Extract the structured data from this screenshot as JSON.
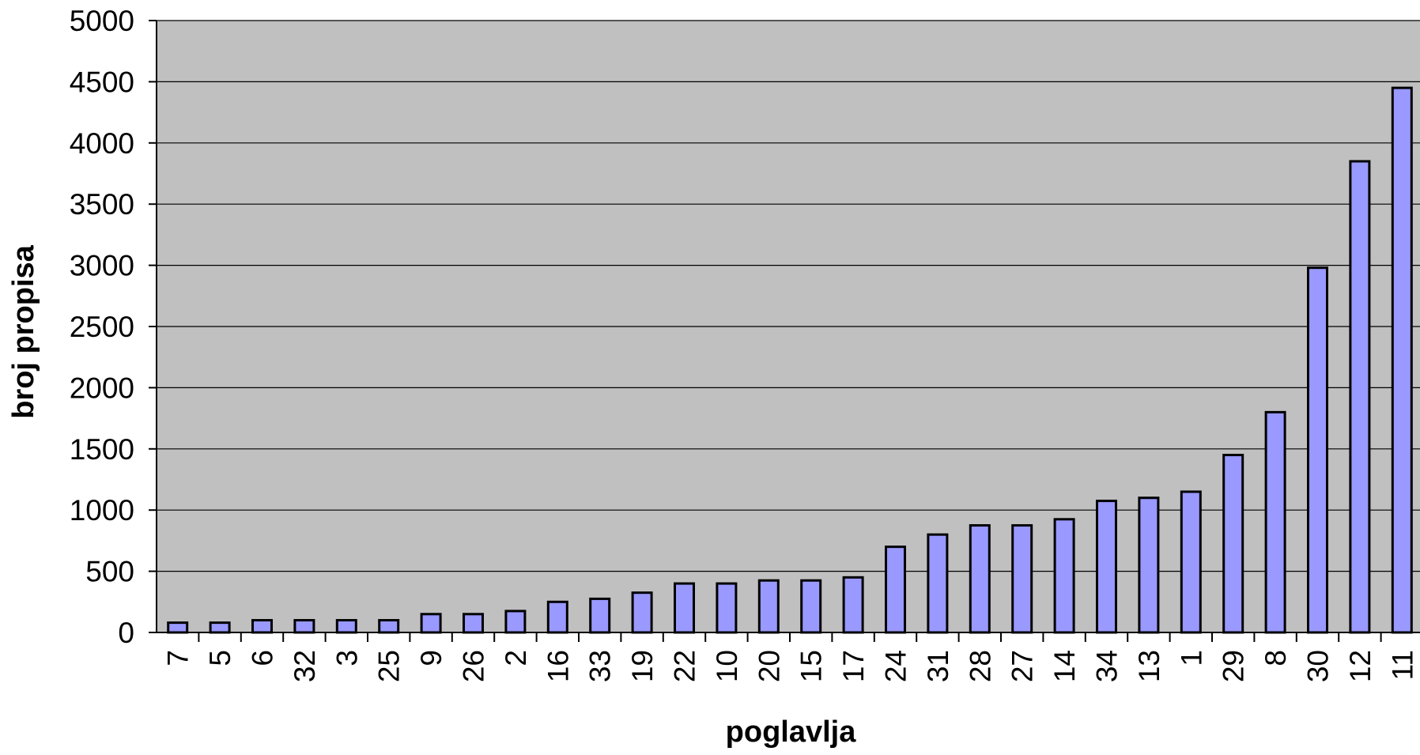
{
  "chart_data": {
    "type": "bar",
    "title": "",
    "xlabel": "poglavlja",
    "ylabel": "broj propisa",
    "ylim": [
      0,
      5000
    ],
    "yticks": [
      0,
      500,
      1000,
      1500,
      2000,
      2500,
      3000,
      3500,
      4000,
      4500,
      5000
    ],
    "grid": true,
    "legend": "none",
    "colors": {
      "plot_bg": "#c0c0c0",
      "bar_fill": "#9999ff",
      "bar_stroke": "#000000",
      "gridline": "#000000"
    },
    "categories": [
      "7",
      "5",
      "6",
      "32",
      "3",
      "25",
      "9",
      "26",
      "2",
      "16",
      "33",
      "19",
      "22",
      "10",
      "20",
      "15",
      "17",
      "24",
      "31",
      "28",
      "27",
      "14",
      "34",
      "13",
      "1",
      "29",
      "8",
      "30",
      "12",
      "11"
    ],
    "values": [
      80,
      80,
      100,
      100,
      100,
      100,
      150,
      150,
      175,
      250,
      275,
      325,
      400,
      400,
      425,
      425,
      450,
      700,
      800,
      875,
      875,
      925,
      1075,
      1100,
      1150,
      1450,
      1800,
      2980,
      3850,
      4450
    ]
  }
}
